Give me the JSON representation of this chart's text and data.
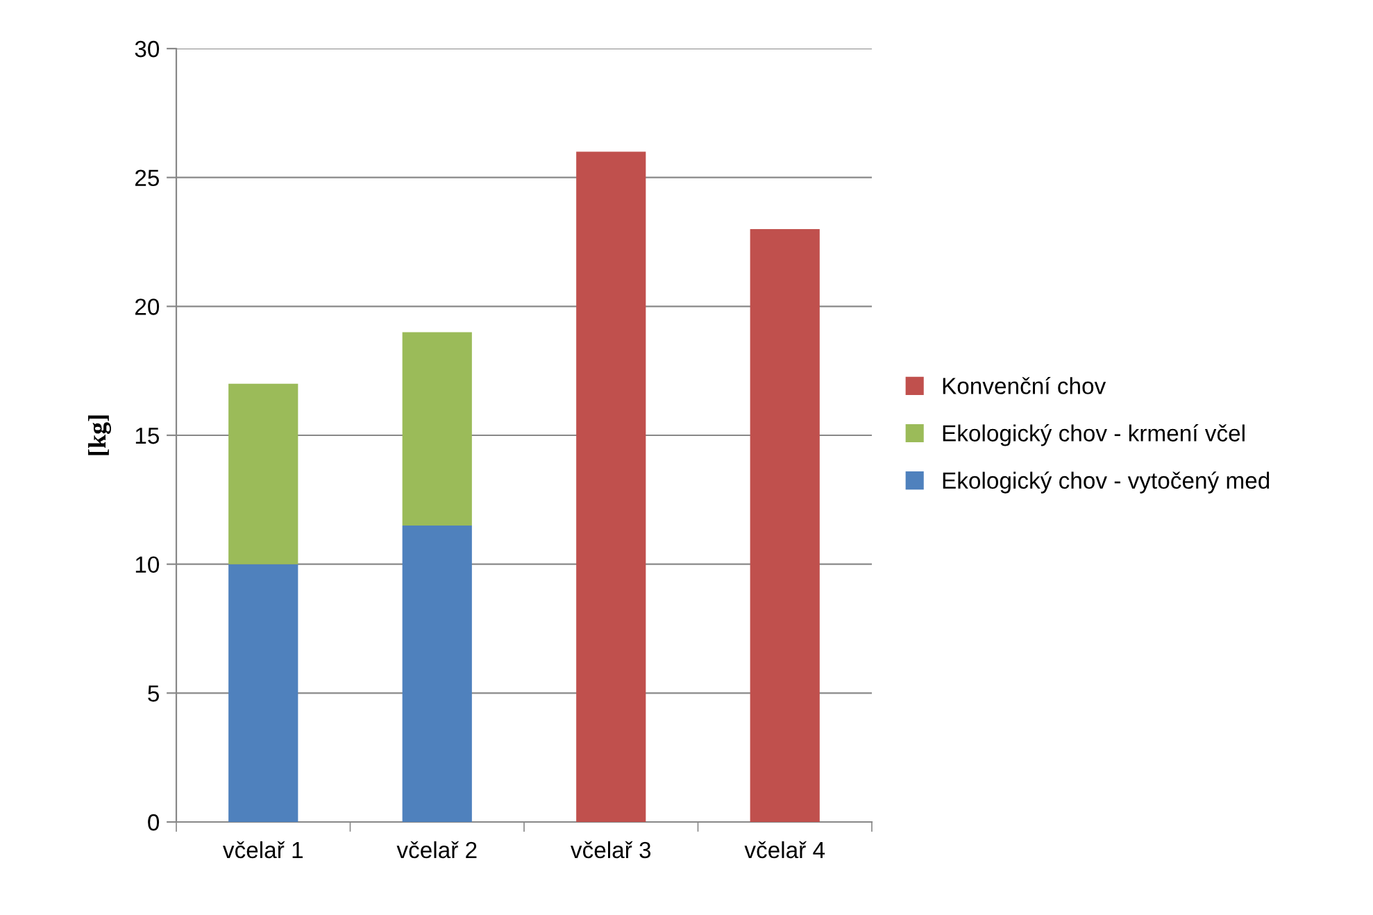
{
  "chart_data": {
    "type": "bar",
    "stacked": true,
    "ylabel": "[kg]",
    "categories": [
      "včelař 1",
      "včelař 2",
      "včelař 3",
      "včelař 4"
    ],
    "series": [
      {
        "name": "Ekologický chov - vytočený med",
        "color": "#4f81bd",
        "values": [
          10,
          11.5,
          null,
          null
        ]
      },
      {
        "name": "Ekologický chov - krmení včel",
        "color": "#9bbb59",
        "values": [
          7,
          7.5,
          null,
          null
        ]
      },
      {
        "name": "Konvenční chov",
        "color": "#c0504d",
        "values": [
          null,
          null,
          26,
          23
        ]
      }
    ],
    "ylim": [
      0,
      30
    ],
    "yticks": [
      0,
      5,
      10,
      15,
      20,
      25,
      30
    ],
    "grid": "y",
    "legend": "right"
  }
}
